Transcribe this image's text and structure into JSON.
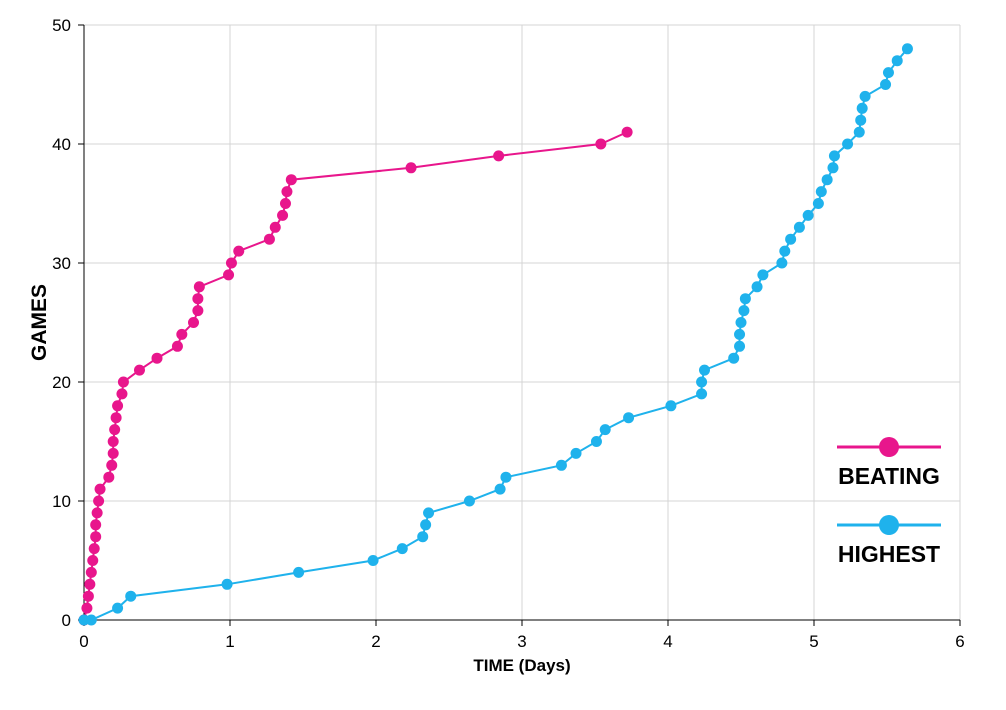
{
  "chart_data": {
    "type": "line",
    "title": "",
    "xlabel": "TIME (Days)",
    "ylabel": "GAMES",
    "xlim": [
      0,
      6
    ],
    "ylim": [
      0,
      50
    ],
    "xticks": [
      "0",
      "1",
      "2",
      "3",
      "4",
      "5",
      "6"
    ],
    "yticks": [
      "0",
      "10",
      "20",
      "30",
      "40",
      "50"
    ],
    "grid": true,
    "legend_position": "bottom-right",
    "series": [
      {
        "name": "BEATING",
        "color": "#e8168c",
        "x": [
          0.0,
          0.02,
          0.03,
          0.04,
          0.05,
          0.06,
          0.07,
          0.08,
          0.08,
          0.09,
          0.1,
          0.11,
          0.17,
          0.19,
          0.2,
          0.2,
          0.21,
          0.22,
          0.23,
          0.26,
          0.27,
          0.38,
          0.5,
          0.64,
          0.67,
          0.75,
          0.78,
          0.78,
          0.79,
          0.99,
          1.01,
          1.06,
          1.27,
          1.31,
          1.36,
          1.38,
          1.39,
          1.42,
          2.24,
          2.84,
          3.54,
          3.72
        ],
        "y": [
          0,
          1,
          2,
          3,
          4,
          5,
          6,
          7,
          8,
          9,
          10,
          11,
          12,
          13,
          14,
          15,
          16,
          17,
          18,
          19,
          20,
          21,
          22,
          23,
          24,
          25,
          26,
          27,
          28,
          29,
          30,
          31,
          32,
          33,
          34,
          35,
          36,
          37,
          38,
          39,
          40,
          41
        ]
      },
      {
        "name": "HIGHEST",
        "color": "#1fb2ec",
        "x": [
          0.0,
          0.05,
          0.23,
          0.32,
          0.98,
          1.47,
          1.98,
          2.18,
          2.32,
          2.34,
          2.36,
          2.64,
          2.85,
          2.89,
          3.27,
          3.37,
          3.51,
          3.57,
          3.73,
          4.02,
          4.23,
          4.23,
          4.25,
          4.45,
          4.49,
          4.49,
          4.5,
          4.52,
          4.53,
          4.61,
          4.65,
          4.78,
          4.8,
          4.84,
          4.9,
          4.96,
          5.03,
          5.05,
          5.09,
          5.13,
          5.14,
          5.23,
          5.31,
          5.32,
          5.33,
          5.35,
          5.49,
          5.51,
          5.57,
          5.64
        ],
        "y": [
          0,
          0,
          1,
          2,
          3,
          4,
          5,
          6,
          7,
          8,
          9,
          10,
          11,
          12,
          13,
          14,
          15,
          16,
          17,
          18,
          19,
          20,
          21,
          22,
          23,
          24,
          25,
          26,
          27,
          28,
          29,
          30,
          31,
          32,
          33,
          34,
          35,
          36,
          37,
          38,
          39,
          40,
          41,
          42,
          43,
          44,
          45,
          46,
          47,
          48
        ]
      }
    ]
  }
}
